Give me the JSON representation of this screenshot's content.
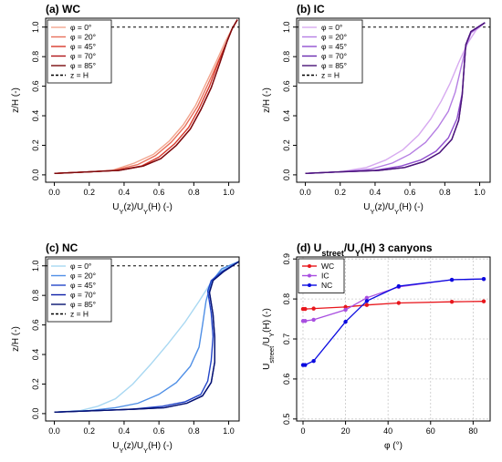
{
  "chart_data": [
    {
      "panel": "a",
      "type": "line",
      "title": "(a) WC",
      "xlabel": "UY(z)/UY(H) (-)",
      "ylabel": "z/H (-)",
      "xlim": [
        -0.05,
        1.06
      ],
      "ylim": [
        -0.05,
        1.06
      ],
      "xticks": [
        0.0,
        0.2,
        0.4,
        0.6,
        0.8,
        1.0
      ],
      "yticks": [
        0.0,
        0.2,
        0.4,
        0.6,
        0.8,
        1.0
      ],
      "legend_position": "top-left",
      "reference_line": {
        "label": "z = H",
        "y": 1.0,
        "style": "dashed",
        "color": "#000000"
      },
      "series": [
        {
          "name": "φ = 0°",
          "color": "#f2a58e",
          "points": [
            [
              0.0,
              0.01
            ],
            [
              0.2,
              0.02
            ],
            [
              0.33,
              0.03
            ],
            [
              0.46,
              0.08
            ],
            [
              0.57,
              0.14
            ],
            [
              0.66,
              0.23
            ],
            [
              0.74,
              0.34
            ],
            [
              0.81,
              0.47
            ],
            [
              0.87,
              0.62
            ],
            [
              0.93,
              0.77
            ],
            [
              0.98,
              0.9
            ],
            [
              1.02,
              0.99
            ],
            [
              1.05,
              1.05
            ]
          ]
        },
        {
          "name": "φ = 20°",
          "color": "#e8715c",
          "points": [
            [
              0.0,
              0.01
            ],
            [
              0.2,
              0.02
            ],
            [
              0.34,
              0.03
            ],
            [
              0.48,
              0.07
            ],
            [
              0.58,
              0.13
            ],
            [
              0.67,
              0.22
            ],
            [
              0.75,
              0.33
            ],
            [
              0.82,
              0.46
            ],
            [
              0.88,
              0.61
            ],
            [
              0.94,
              0.77
            ],
            [
              0.99,
              0.9
            ],
            [
              1.02,
              0.99
            ],
            [
              1.05,
              1.05
            ]
          ]
        },
        {
          "name": "φ = 45°",
          "color": "#d8392b",
          "points": [
            [
              0.0,
              0.01
            ],
            [
              0.2,
              0.02
            ],
            [
              0.36,
              0.03
            ],
            [
              0.5,
              0.06
            ],
            [
              0.6,
              0.12
            ],
            [
              0.69,
              0.21
            ],
            [
              0.77,
              0.32
            ],
            [
              0.83,
              0.45
            ],
            [
              0.89,
              0.6
            ],
            [
              0.94,
              0.76
            ],
            [
              0.99,
              0.9
            ],
            [
              1.02,
              0.99
            ],
            [
              1.05,
              1.05
            ]
          ]
        },
        {
          "name": "φ = 70°",
          "color": "#b01418",
          "points": [
            [
              0.0,
              0.01
            ],
            [
              0.2,
              0.02
            ],
            [
              0.37,
              0.03
            ],
            [
              0.51,
              0.06
            ],
            [
              0.61,
              0.11
            ],
            [
              0.7,
              0.2
            ],
            [
              0.78,
              0.31
            ],
            [
              0.84,
              0.44
            ],
            [
              0.9,
              0.59
            ],
            [
              0.95,
              0.76
            ],
            [
              0.99,
              0.9
            ],
            [
              1.02,
              0.99
            ],
            [
              1.05,
              1.05
            ]
          ]
        },
        {
          "name": "φ = 85°",
          "color": "#7a0a0e",
          "points": [
            [
              0.0,
              0.01
            ],
            [
              0.2,
              0.02
            ],
            [
              0.37,
              0.03
            ],
            [
              0.51,
              0.06
            ],
            [
              0.61,
              0.11
            ],
            [
              0.7,
              0.2
            ],
            [
              0.78,
              0.31
            ],
            [
              0.84,
              0.44
            ],
            [
              0.9,
              0.59
            ],
            [
              0.95,
              0.76
            ],
            [
              0.99,
              0.9
            ],
            [
              1.02,
              0.99
            ],
            [
              1.05,
              1.05
            ]
          ]
        }
      ]
    },
    {
      "panel": "b",
      "type": "line",
      "title": "(b) IC",
      "xlabel": "UY(z)/UY(H) (-)",
      "ylabel": "z/H (-)",
      "xlim": [
        -0.05,
        1.06
      ],
      "ylim": [
        -0.05,
        1.06
      ],
      "xticks": [
        0.0,
        0.2,
        0.4,
        0.6,
        0.8,
        1.0
      ],
      "yticks": [
        0.0,
        0.2,
        0.4,
        0.6,
        0.8,
        1.0
      ],
      "legend_position": "top-left",
      "reference_line": {
        "label": "z = H",
        "y": 1.0,
        "style": "dashed",
        "color": "#000000"
      },
      "series": [
        {
          "name": "φ = 0°",
          "color": "#d7aaf0",
          "points": [
            [
              0.0,
              0.01
            ],
            [
              0.2,
              0.02
            ],
            [
              0.35,
              0.05
            ],
            [
              0.46,
              0.1
            ],
            [
              0.56,
              0.17
            ],
            [
              0.65,
              0.27
            ],
            [
              0.72,
              0.38
            ],
            [
              0.78,
              0.5
            ],
            [
              0.83,
              0.62
            ],
            [
              0.88,
              0.76
            ],
            [
              0.93,
              0.89
            ],
            [
              0.98,
              0.98
            ],
            [
              1.03,
              1.03
            ]
          ]
        },
        {
          "name": "φ = 20°",
          "color": "#b57ee3",
          "points": [
            [
              0.0,
              0.01
            ],
            [
              0.2,
              0.02
            ],
            [
              0.38,
              0.04
            ],
            [
              0.5,
              0.08
            ],
            [
              0.6,
              0.14
            ],
            [
              0.69,
              0.22
            ],
            [
              0.76,
              0.32
            ],
            [
              0.82,
              0.43
            ],
            [
              0.86,
              0.56
            ],
            [
              0.89,
              0.71
            ],
            [
              0.92,
              0.86
            ],
            [
              0.95,
              0.96
            ],
            [
              1.03,
              1.03
            ]
          ]
        },
        {
          "name": "φ = 45°",
          "color": "#9150cf",
          "points": [
            [
              0.0,
              0.01
            ],
            [
              0.2,
              0.02
            ],
            [
              0.4,
              0.03
            ],
            [
              0.55,
              0.06
            ],
            [
              0.66,
              0.1
            ],
            [
              0.75,
              0.16
            ],
            [
              0.82,
              0.25
            ],
            [
              0.87,
              0.38
            ],
            [
              0.9,
              0.55
            ],
            [
              0.91,
              0.72
            ],
            [
              0.92,
              0.88
            ],
            [
              0.95,
              0.97
            ],
            [
              1.03,
              1.03
            ]
          ]
        },
        {
          "name": "φ = 70°",
          "color": "#6a2bb0",
          "points": [
            [
              0.0,
              0.01
            ],
            [
              0.2,
              0.02
            ],
            [
              0.42,
              0.03
            ],
            [
              0.57,
              0.05
            ],
            [
              0.68,
              0.09
            ],
            [
              0.77,
              0.15
            ],
            [
              0.84,
              0.24
            ],
            [
              0.88,
              0.37
            ],
            [
              0.9,
              0.54
            ],
            [
              0.91,
              0.72
            ],
            [
              0.92,
              0.88
            ],
            [
              0.95,
              0.97
            ],
            [
              1.03,
              1.03
            ]
          ]
        },
        {
          "name": "φ = 85°",
          "color": "#4a1478",
          "points": [
            [
              0.0,
              0.01
            ],
            [
              0.2,
              0.02
            ],
            [
              0.42,
              0.03
            ],
            [
              0.57,
              0.05
            ],
            [
              0.68,
              0.09
            ],
            [
              0.77,
              0.15
            ],
            [
              0.84,
              0.24
            ],
            [
              0.88,
              0.37
            ],
            [
              0.9,
              0.54
            ],
            [
              0.91,
              0.72
            ],
            [
              0.92,
              0.88
            ],
            [
              0.95,
              0.97
            ],
            [
              1.03,
              1.03
            ]
          ]
        }
      ]
    },
    {
      "panel": "c",
      "type": "line",
      "title": "(c) NC",
      "xlabel": "UY(z)/UY(H) (-)",
      "ylabel": "z/H (-)",
      "xlim": [
        -0.05,
        1.06
      ],
      "ylim": [
        -0.05,
        1.06
      ],
      "xticks": [
        0.0,
        0.2,
        0.4,
        0.6,
        0.8,
        1.0
      ],
      "yticks": [
        0.0,
        0.2,
        0.4,
        0.6,
        0.8,
        1.0
      ],
      "legend_position": "top-left",
      "reference_line": {
        "label": "z = H",
        "y": 1.0,
        "style": "dashed",
        "color": "#000000"
      },
      "series": [
        {
          "name": "φ = 0°",
          "color": "#a9d8f2",
          "points": [
            [
              0.0,
              0.01
            ],
            [
              0.15,
              0.02
            ],
            [
              0.25,
              0.05
            ],
            [
              0.35,
              0.1
            ],
            [
              0.45,
              0.2
            ],
            [
              0.55,
              0.33
            ],
            [
              0.65,
              0.47
            ],
            [
              0.75,
              0.62
            ],
            [
              0.83,
              0.76
            ],
            [
              0.9,
              0.89
            ],
            [
              0.95,
              0.96
            ],
            [
              1.0,
              1.0
            ],
            [
              1.06,
              1.03
            ]
          ]
        },
        {
          "name": "φ = 20°",
          "color": "#4f8fe6",
          "points": [
            [
              0.0,
              0.01
            ],
            [
              0.2,
              0.02
            ],
            [
              0.35,
              0.04
            ],
            [
              0.48,
              0.07
            ],
            [
              0.6,
              0.13
            ],
            [
              0.7,
              0.21
            ],
            [
              0.78,
              0.32
            ],
            [
              0.83,
              0.45
            ],
            [
              0.85,
              0.6
            ],
            [
              0.87,
              0.76
            ],
            [
              0.9,
              0.89
            ],
            [
              0.96,
              0.98
            ],
            [
              1.06,
              1.03
            ]
          ]
        },
        {
          "name": "φ = 45°",
          "color": "#2446c9",
          "points": [
            [
              0.0,
              0.01
            ],
            [
              0.25,
              0.02
            ],
            [
              0.45,
              0.03
            ],
            [
              0.62,
              0.05
            ],
            [
              0.75,
              0.08
            ],
            [
              0.84,
              0.13
            ],
            [
              0.88,
              0.22
            ],
            [
              0.9,
              0.36
            ],
            [
              0.91,
              0.52
            ],
            [
              0.9,
              0.68
            ],
            [
              0.88,
              0.83
            ],
            [
              0.9,
              0.9
            ],
            [
              0.96,
              0.96
            ],
            [
              1.06,
              1.03
            ]
          ]
        },
        {
          "name": "φ = 70°",
          "color": "#0d1fa8",
          "points": [
            [
              0.0,
              0.01
            ],
            [
              0.25,
              0.02
            ],
            [
              0.46,
              0.03
            ],
            [
              0.63,
              0.04
            ],
            [
              0.76,
              0.07
            ],
            [
              0.85,
              0.12
            ],
            [
              0.9,
              0.21
            ],
            [
              0.92,
              0.35
            ],
            [
              0.92,
              0.51
            ],
            [
              0.91,
              0.67
            ],
            [
              0.89,
              0.82
            ],
            [
              0.91,
              0.9
            ],
            [
              0.97,
              0.96
            ],
            [
              1.06,
              1.03
            ]
          ]
        },
        {
          "name": "φ = 85°",
          "color": "#061270",
          "points": [
            [
              0.0,
              0.01
            ],
            [
              0.25,
              0.02
            ],
            [
              0.46,
              0.03
            ],
            [
              0.63,
              0.04
            ],
            [
              0.76,
              0.07
            ],
            [
              0.85,
              0.12
            ],
            [
              0.9,
              0.21
            ],
            [
              0.92,
              0.35
            ],
            [
              0.92,
              0.51
            ],
            [
              0.91,
              0.67
            ],
            [
              0.89,
              0.82
            ],
            [
              0.91,
              0.9
            ],
            [
              0.97,
              0.96
            ],
            [
              1.06,
              1.03
            ]
          ]
        }
      ]
    },
    {
      "panel": "d",
      "type": "line",
      "title": "(d) Ustreet/UY(H) 3 canyons",
      "xlabel": "φ (°)",
      "ylabel": "Ustreet/UY(H) (-)",
      "xlim": [
        -3,
        88
      ],
      "ylim": [
        0.495,
        0.905
      ],
      "xticks": [
        0,
        20,
        40,
        60,
        80
      ],
      "yticks": [
        0.5,
        0.6,
        0.7,
        0.8,
        0.9
      ],
      "grid": true,
      "markers": true,
      "legend_position": "top-left",
      "series": [
        {
          "name": "WC",
          "color": "#e8161c",
          "points": [
            [
              0,
              0.775
            ],
            [
              1,
              0.775
            ],
            [
              5,
              0.776
            ],
            [
              20,
              0.78
            ],
            [
              30,
              0.785
            ],
            [
              45,
              0.79
            ],
            [
              70,
              0.793
            ],
            [
              85,
              0.794
            ]
          ]
        },
        {
          "name": "IC",
          "color": "#a84ee0",
          "points": [
            [
              0,
              0.745
            ],
            [
              1,
              0.745
            ],
            [
              5,
              0.748
            ],
            [
              20,
              0.773
            ],
            [
              30,
              0.803
            ],
            [
              45,
              0.83
            ],
            [
              70,
              0.848
            ],
            [
              85,
              0.85
            ]
          ]
        },
        {
          "name": "NC",
          "color": "#0a0ae0",
          "points": [
            [
              0,
              0.635
            ],
            [
              1,
              0.635
            ],
            [
              5,
              0.645
            ],
            [
              20,
              0.743
            ],
            [
              30,
              0.795
            ],
            [
              45,
              0.832
            ],
            [
              70,
              0.848
            ],
            [
              85,
              0.85
            ]
          ]
        }
      ]
    }
  ]
}
